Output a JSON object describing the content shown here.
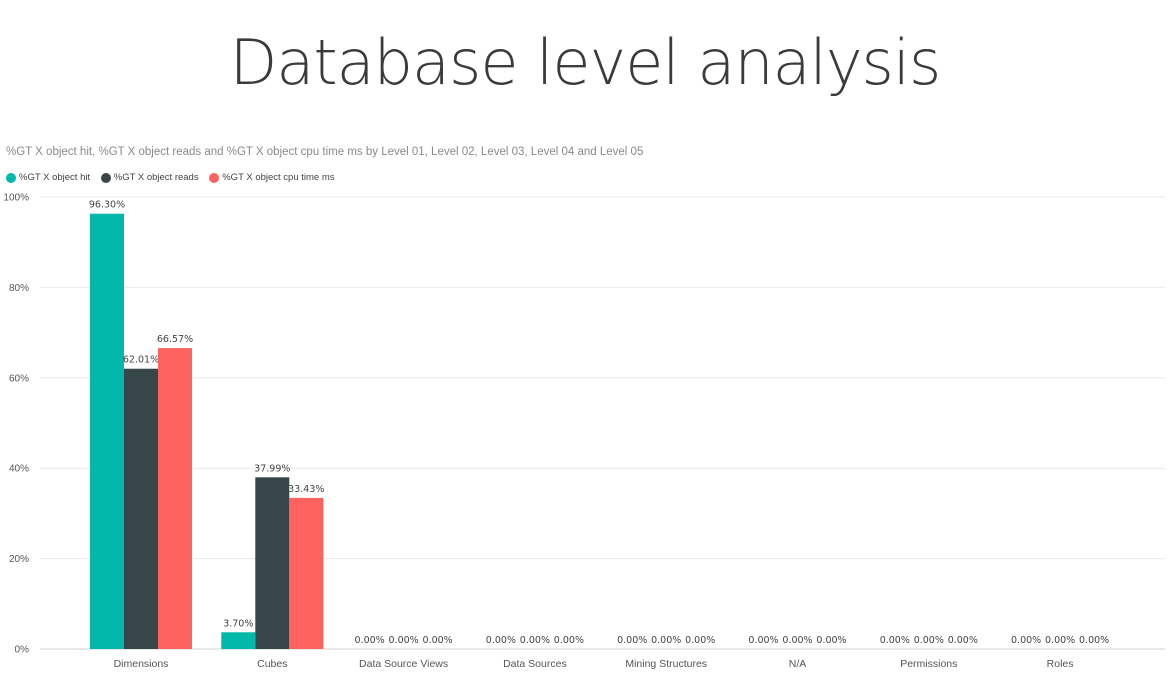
{
  "page": {
    "title": "Database level analysis"
  },
  "chart_data": {
    "type": "bar",
    "title": "%GT X object hit, %GT X object reads and %GT X object cpu time ms by Level 01, Level 02, Level 03, Level 04 and Level 05",
    "xlabel": "",
    "ylabel": "",
    "categories": [
      "Dimensions",
      "Cubes",
      "Data Source Views",
      "Data Sources",
      "Mining Structures",
      "N/A",
      "Permissions",
      "Roles"
    ],
    "series": [
      {
        "name": "%GT X object hit",
        "color": "#01b8aa",
        "values": [
          96.3,
          3.7,
          0.0,
          0.0,
          0.0,
          0.0,
          0.0,
          0.0
        ],
        "labels": [
          "96.30%",
          "3.70%",
          "0.00%",
          "0.00%",
          "0.00%",
          "0.00%",
          "0.00%",
          "0.00%"
        ]
      },
      {
        "name": "%GT X object reads",
        "color": "#374649",
        "values": [
          62.01,
          37.99,
          0.0,
          0.0,
          0.0,
          0.0,
          0.0,
          0.0
        ],
        "labels": [
          "62.01%",
          "37.99%",
          "0.00%",
          "0.00%",
          "0.00%",
          "0.00%",
          "0.00%",
          "0.00%"
        ]
      },
      {
        "name": "%GT X object cpu time ms",
        "color": "#fd625e",
        "values": [
          66.57,
          33.43,
          0.0,
          0.0,
          0.0,
          0.0,
          0.0,
          0.0
        ],
        "labels": [
          "66.57%",
          "33.43%",
          "0.00%",
          "0.00%",
          "0.00%",
          "0.00%",
          "0.00%",
          "0.00%"
        ]
      }
    ],
    "ylim": [
      0,
      100
    ],
    "yticks": [
      0,
      20,
      40,
      60,
      80,
      100
    ],
    "ytick_labels": [
      "0%",
      "20%",
      "40%",
      "60%",
      "80%",
      "100%"
    ],
    "grid": true,
    "legend_position": "top-left"
  }
}
